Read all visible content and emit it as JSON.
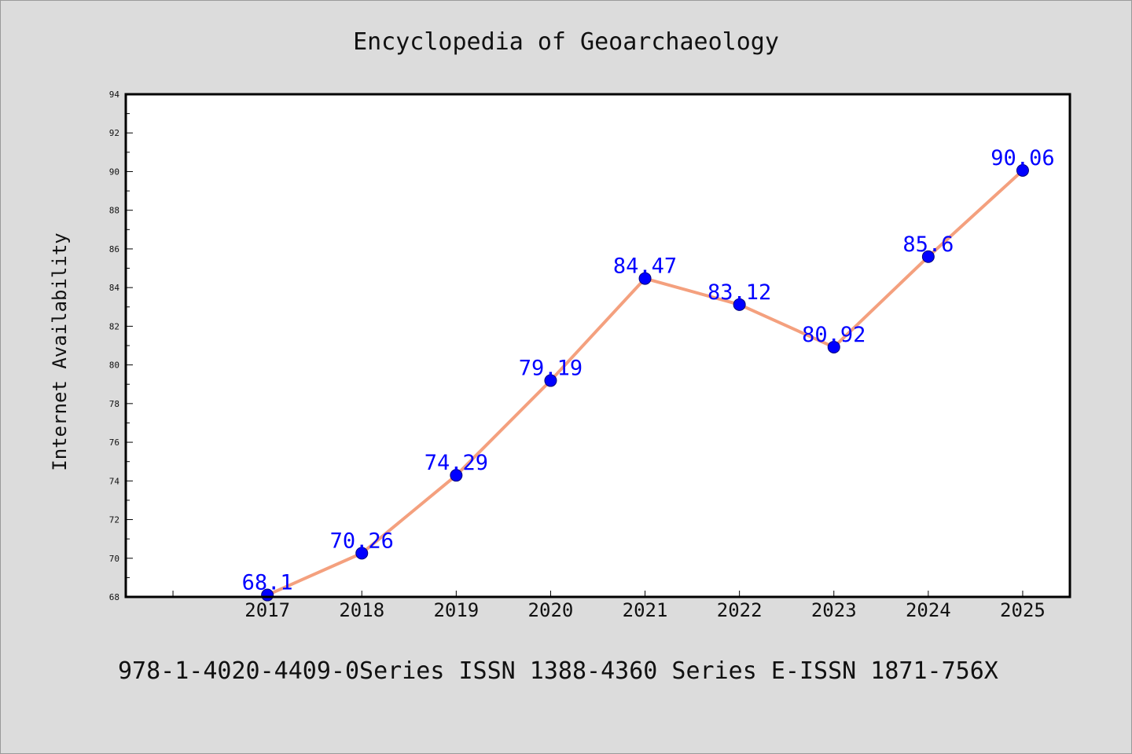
{
  "chart_data": {
    "type": "line",
    "title": "Encyclopedia of Geoarchaeology",
    "xlabel": "",
    "ylabel": "Internet Availability",
    "categories": [
      "2017",
      "2018",
      "2019",
      "2020",
      "2021",
      "2022",
      "2023",
      "2024",
      "2025"
    ],
    "series": [
      {
        "values": [
          68.1,
          70.26,
          74.29,
          79.19,
          84.47,
          83.12,
          80.92,
          85.6,
          90.06
        ],
        "labels": [
          "68.1",
          "70.26",
          "74.29",
          "79.19",
          "84.47",
          "83.12",
          "80.92",
          "85.6",
          "90.06"
        ]
      }
    ],
    "ylim": [
      68,
      94
    ],
    "yticks": [
      68,
      70,
      72,
      74,
      76,
      78,
      80,
      82,
      84,
      86,
      88,
      90,
      92,
      94
    ],
    "xlim": [
      2015.5,
      2025.5
    ],
    "grid": false,
    "line_color": "#f4a07e",
    "marker_color": "#0000ff",
    "label_color": "#0000ff",
    "background": "#dcdcdc",
    "plot_background": "#ffffff"
  },
  "footer": "978-1-4020-4409-0Series ISSN 1388-4360 Series E-ISSN 1871-756X"
}
